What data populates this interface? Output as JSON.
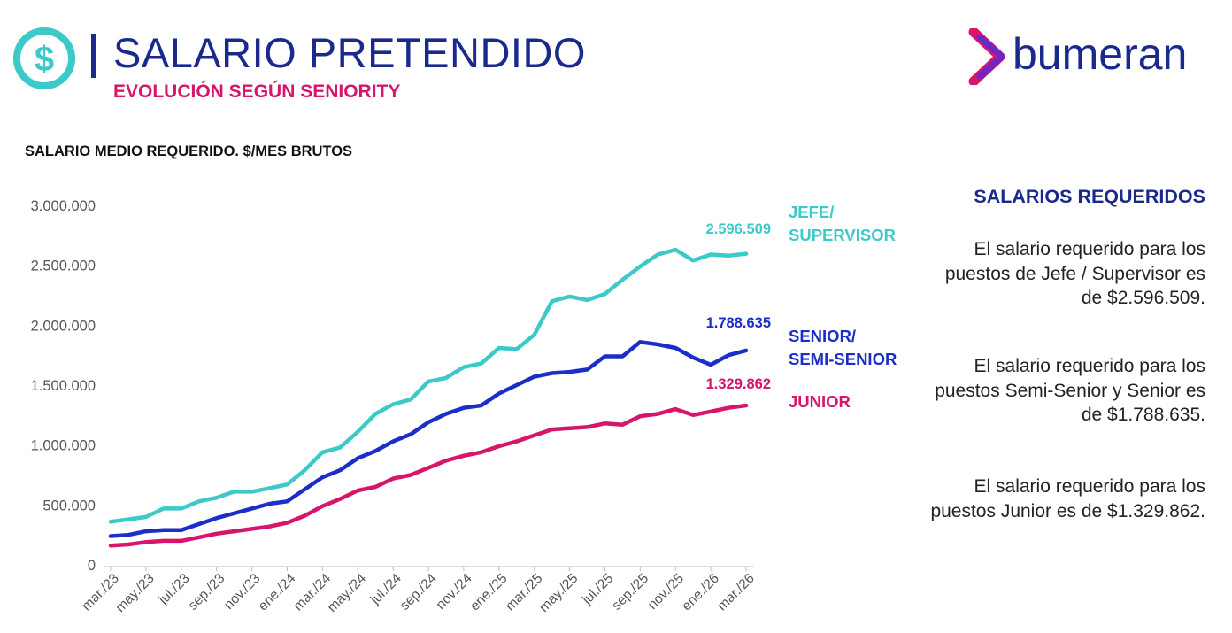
{
  "header": {
    "title": "SALARIO PRETENDIDO",
    "subtitle": "EVOLUCIÓN SEGÚN SENIORITY"
  },
  "logo": {
    "text": "bumeran"
  },
  "icons": {
    "title_icon": "dollar-icon",
    "logo_icon": "bumeran-arrow-icon"
  },
  "colors": {
    "primary": "#1a2a8c",
    "accent": "#d6156c",
    "teal": "#3cc9c9",
    "series_jefe": "#3cc9c9",
    "series_senior": "#1c2ec8",
    "series_junior": "#d6156c"
  },
  "side_panel": {
    "heading": "SALARIOS REQUERIDOS",
    "paragraphs": [
      "El salario requerido para los puestos de Jefe / Supervisor es de $2.596.509.",
      "El salario requerido para los puestos Semi-Senior y Senior es de $1.788.635.",
      "El salario requerido para los puestos Junior es de $1.329.862."
    ]
  },
  "chart_data": {
    "type": "line",
    "title": "SALARIO MEDIO REQUERIDO. $/MES BRUTOS",
    "xlabel": "",
    "ylabel": "",
    "ylim": [
      0,
      3000000
    ],
    "yticks": [
      0,
      500000,
      1000000,
      1500000,
      2000000,
      2500000,
      3000000
    ],
    "ytick_labels": [
      "0",
      "500.000",
      "1.000.000",
      "1.500.000",
      "2.000.000",
      "2.500.000",
      "3.000.000"
    ],
    "categories": [
      "mar./23",
      "abr./23",
      "may./23",
      "jun./23",
      "jul./23",
      "ago./23",
      "sep./23",
      "oct./23",
      "nov./23",
      "dic./23",
      "ene./24",
      "feb./24",
      "mar./24",
      "abr./24",
      "may./24",
      "jun./24",
      "jul./24",
      "ago./24",
      "sep./24",
      "oct./24",
      "nov./24",
      "dic./24",
      "ene./25",
      "feb./25",
      "mar./25",
      "abr./25",
      "may./25",
      "jun./25",
      "jul./25",
      "ago./25",
      "sep./25",
      "oct./25",
      "nov./25",
      "dic./25",
      "ene./26",
      "feb./26",
      "mar./26"
    ],
    "x_tick_labels": [
      "mar./23",
      "may./23",
      "jul./23",
      "sep./23",
      "nov./23",
      "ene./24",
      "mar./24",
      "may./24",
      "jul./24",
      "sep./24",
      "nov./24",
      "ene./25",
      "mar./25",
      "may./25",
      "jul./25",
      "sep./25",
      "nov./25",
      "ene./26",
      "mar./26"
    ],
    "series": [
      {
        "name": "JEFE/ SUPERVISOR",
        "label_lines": [
          "JEFE/",
          "SUPERVISOR"
        ],
        "color": "#3cc9c9",
        "end_label": "2.596.509",
        "values": [
          360000,
          380000,
          400000,
          470000,
          470000,
          530000,
          560000,
          610000,
          610000,
          640000,
          670000,
          790000,
          940000,
          980000,
          1110000,
          1260000,
          1340000,
          1380000,
          1530000,
          1560000,
          1650000,
          1680000,
          1810000,
          1800000,
          1920000,
          2200000,
          2240000,
          2210000,
          2260000,
          2380000,
          2490000,
          2590000,
          2630000,
          2540000,
          2590000,
          2580000,
          2596509
        ]
      },
      {
        "name": "SENIOR/ SEMI-SENIOR",
        "label_lines": [
          "SENIOR/",
          "SEMI-SENIOR"
        ],
        "color": "#1c2ec8",
        "end_label": "1.788.635",
        "values": [
          240000,
          250000,
          280000,
          290000,
          290000,
          340000,
          390000,
          430000,
          470000,
          510000,
          530000,
          630000,
          730000,
          790000,
          890000,
          950000,
          1030000,
          1090000,
          1190000,
          1260000,
          1310000,
          1330000,
          1430000,
          1500000,
          1570000,
          1600000,
          1610000,
          1630000,
          1740000,
          1740000,
          1860000,
          1840000,
          1810000,
          1730000,
          1670000,
          1750000,
          1788635
        ]
      },
      {
        "name": "JUNIOR",
        "label_lines": [
          "JUNIOR"
        ],
        "color": "#d6156c",
        "end_label": "1.329.862",
        "values": [
          160000,
          170000,
          190000,
          200000,
          200000,
          230000,
          260000,
          280000,
          300000,
          320000,
          350000,
          410000,
          490000,
          550000,
          620000,
          650000,
          720000,
          750000,
          810000,
          870000,
          910000,
          940000,
          990000,
          1030000,
          1080000,
          1130000,
          1140000,
          1150000,
          1180000,
          1170000,
          1240000,
          1260000,
          1300000,
          1250000,
          1280000,
          1310000,
          1329862
        ]
      }
    ]
  }
}
